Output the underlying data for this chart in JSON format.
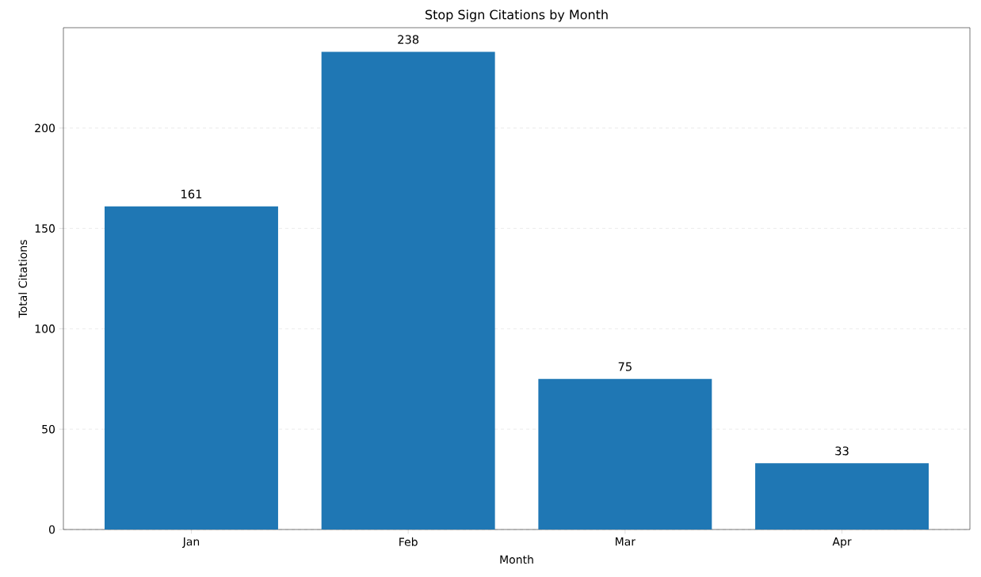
{
  "chart_data": {
    "type": "bar",
    "title": "Stop Sign Citations by Month",
    "xlabel": "Month",
    "ylabel": "Total Citations",
    "categories": [
      "Jan",
      "Feb",
      "Mar",
      "Apr"
    ],
    "values": [
      161,
      238,
      75,
      33
    ],
    "color": "#1f77b4",
    "ylim": [
      0,
      250
    ],
    "yticks": [
      0,
      50,
      100,
      150,
      200
    ],
    "grid": "y",
    "data_labels": true
  }
}
